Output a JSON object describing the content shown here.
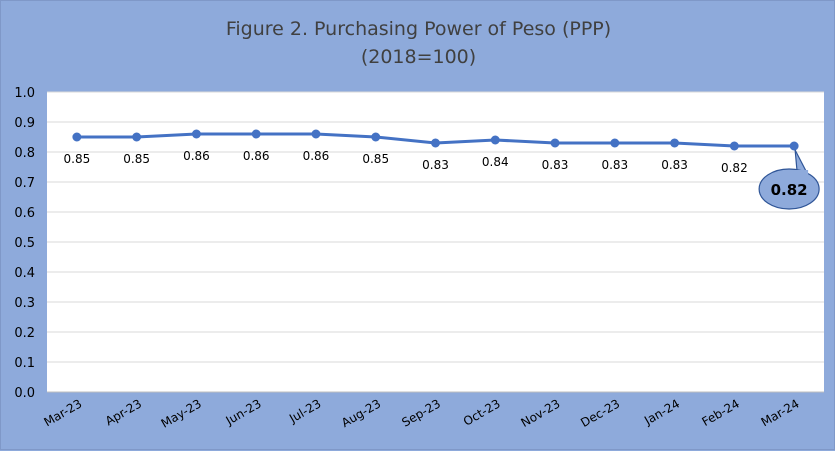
{
  "chart_data": {
    "type": "line",
    "title": "Figure 2. Purchasing Power of Peso (PPP)",
    "subtitle": "(2018=100)",
    "xlabel": "",
    "ylabel": "",
    "ylim": [
      0.0,
      1.0
    ],
    "y_ticks": [
      "0.0",
      "0.1",
      "0.2",
      "0.3",
      "0.4",
      "0.5",
      "0.6",
      "0.7",
      "0.8",
      "0.9",
      "1.0"
    ],
    "grid": true,
    "legend": "none",
    "categories": [
      "Mar-23",
      "Apr-23",
      "May-23",
      "Jun-23",
      "Jul-23",
      "Aug-23",
      "Sep-23",
      "Oct-23",
      "Nov-23",
      "Dec-23",
      "Jan-24",
      "Feb-24",
      "Mar-24"
    ],
    "series": [
      {
        "values": [
          0.85,
          0.85,
          0.86,
          0.86,
          0.86,
          0.85,
          0.83,
          0.84,
          0.83,
          0.83,
          0.83,
          0.82,
          0.82
        ],
        "labels": [
          "0.85",
          "0.85",
          "0.86",
          "0.86",
          "0.86",
          "0.85",
          "0.83",
          "0.84",
          "0.83",
          "0.83",
          "0.83",
          "0.82",
          "0.82"
        ]
      }
    ],
    "highlight": {
      "index": 12,
      "label": "0.82"
    },
    "colors": {
      "background": "#8eaadb",
      "plot_area": "#ffffff",
      "line": "#4472c4",
      "gridline": "#d9d9d9",
      "callout_fill": "#8eaadb",
      "callout_border": "#2f5597",
      "text": "#000000",
      "title_text": "#404040"
    }
  }
}
